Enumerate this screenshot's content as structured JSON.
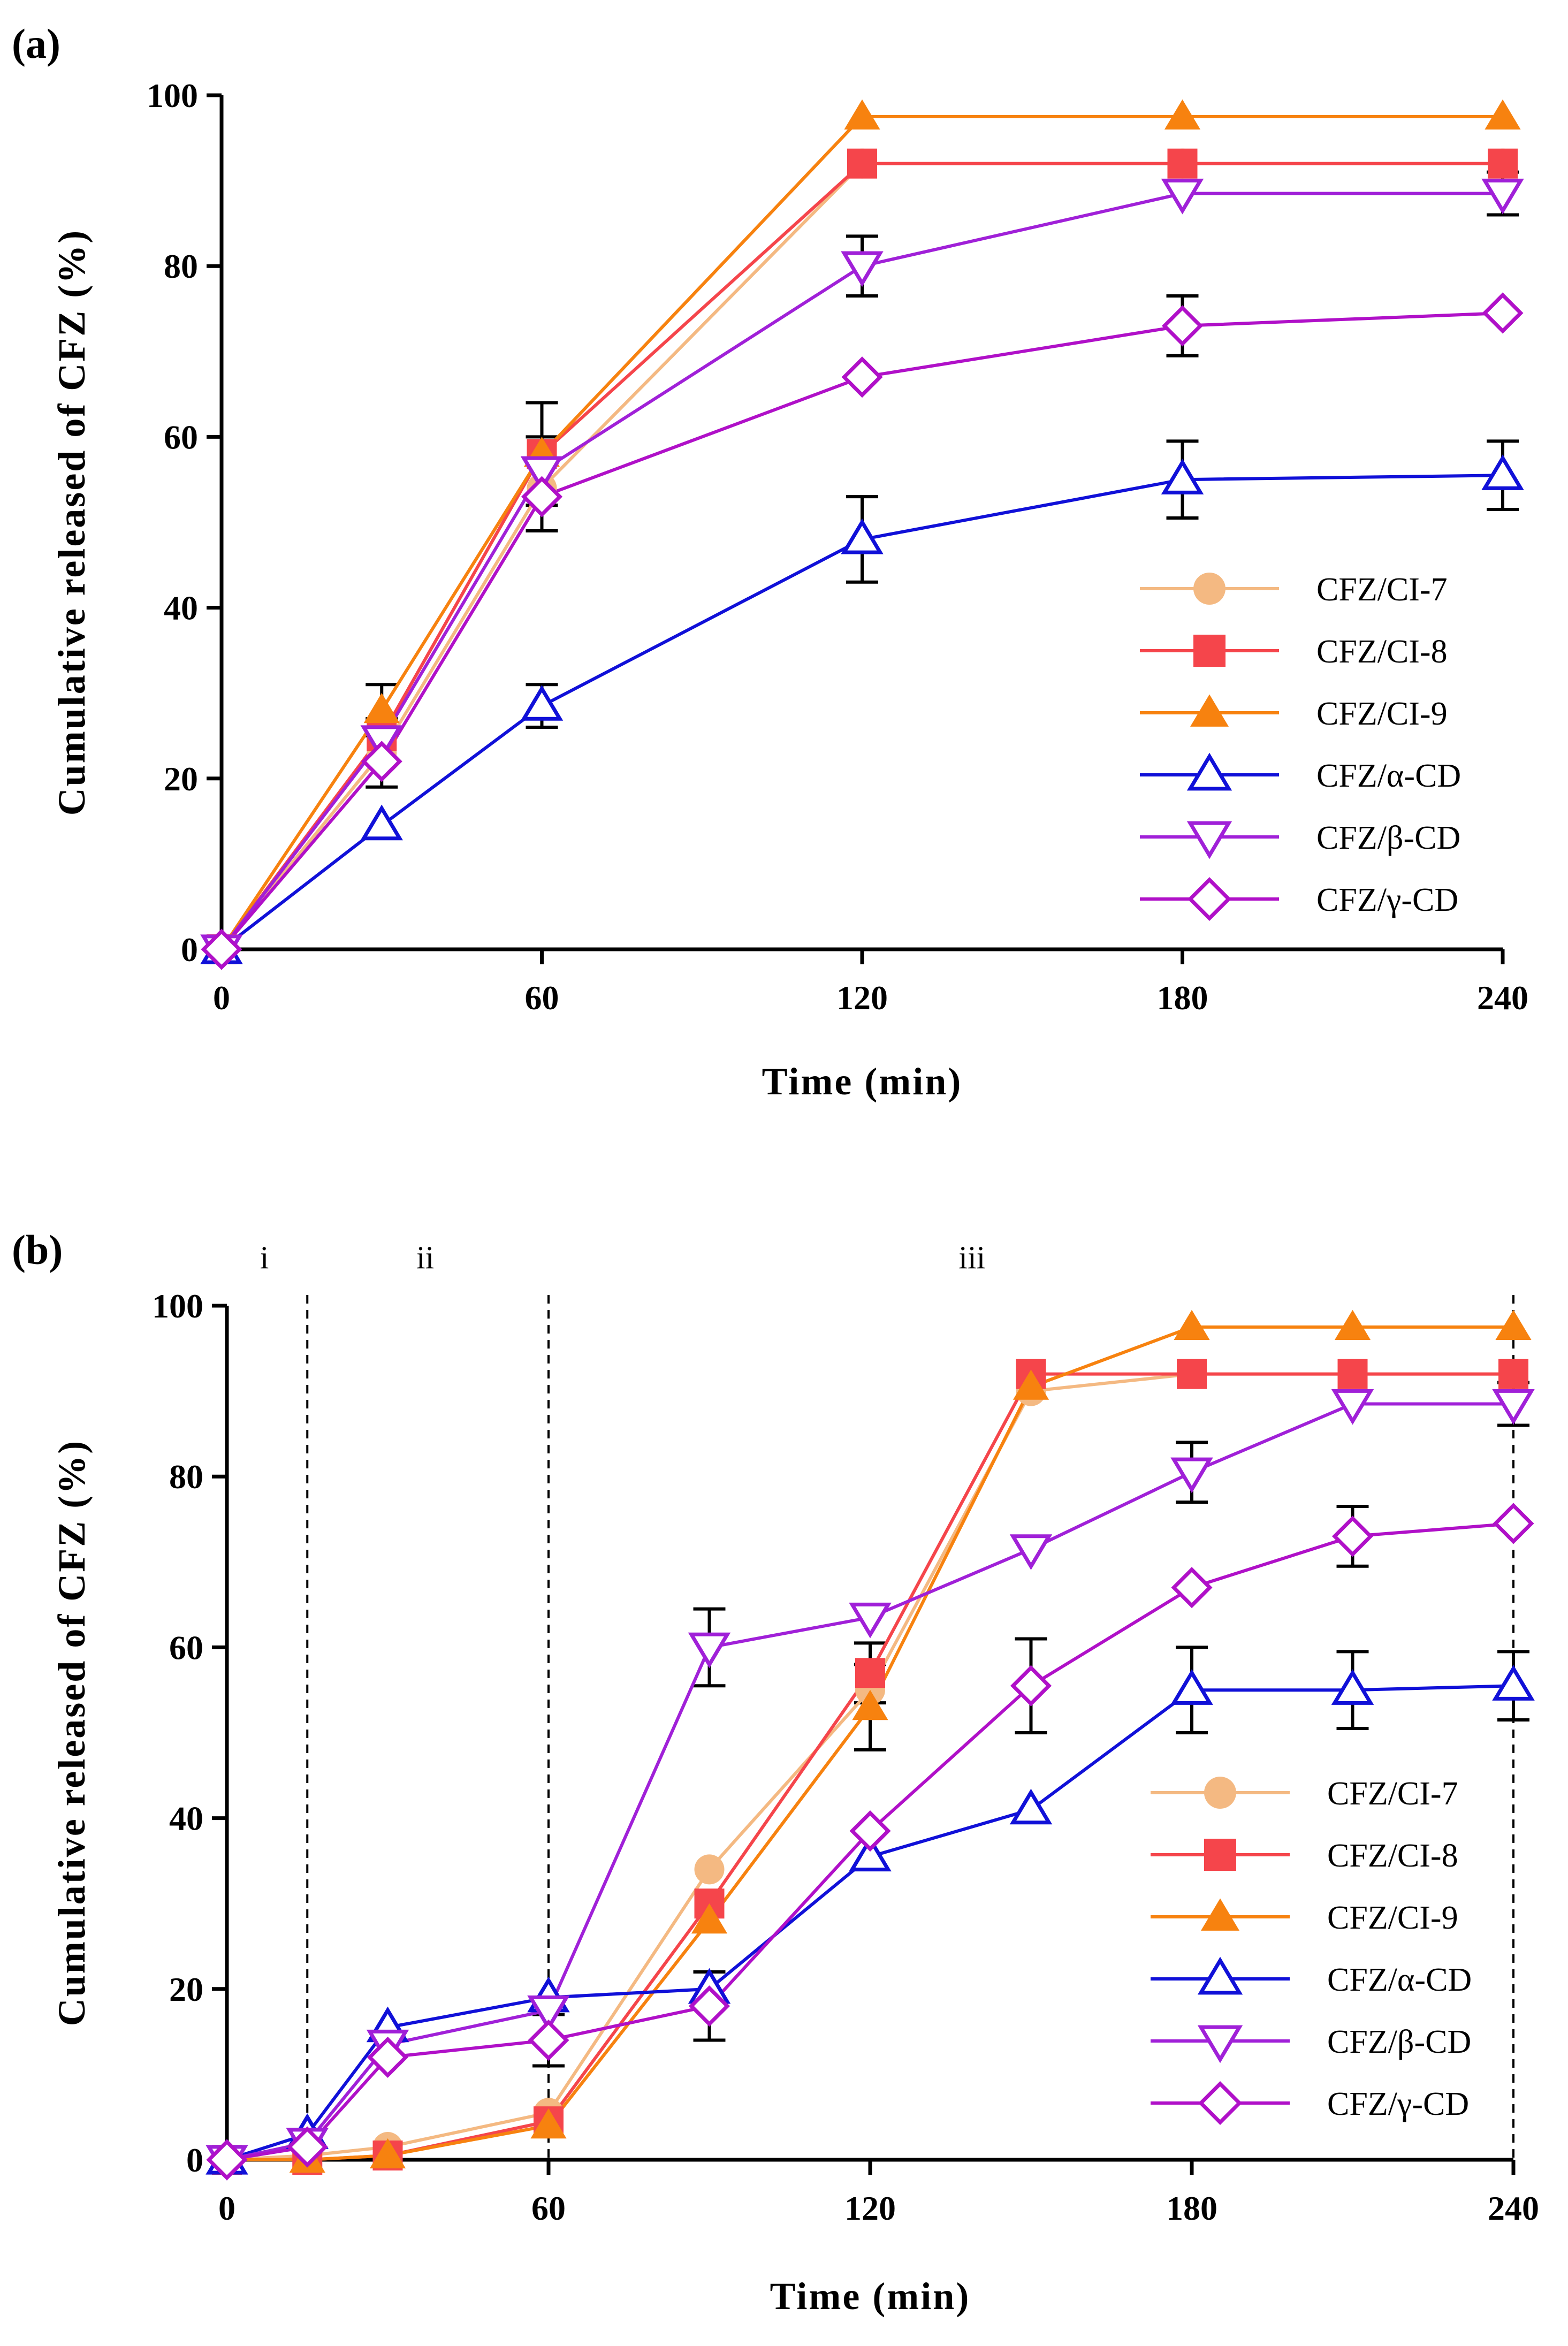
{
  "chart_data": [
    {
      "panel": "(a)",
      "type": "line",
      "xlabel": "Time (min)",
      "ylabel": "Cumulative released of CFZ (%)",
      "xlim": [
        0,
        240
      ],
      "ylim": [
        0,
        100
      ],
      "xticks": [
        "0",
        "60",
        "120",
        "180",
        "240"
      ],
      "yticks": [
        "0",
        "20",
        "40",
        "60",
        "80",
        "100"
      ],
      "legend_position": "right",
      "region_labels": [],
      "series": [
        {
          "name": "CFZ/CI-7",
          "color": "#F4B982",
          "marker": "circle",
          "x": [
            0,
            30,
            60,
            120,
            180,
            240
          ],
          "y": [
            0,
            23,
            54,
            92,
            92,
            92
          ],
          "err": [
            0,
            0,
            0,
            0,
            0,
            0
          ]
        },
        {
          "name": "CFZ/CI-8",
          "color": "#F5454B",
          "marker": "square",
          "x": [
            0,
            30,
            60,
            120,
            180,
            240
          ],
          "y": [
            0,
            25,
            58,
            92,
            92,
            92
          ],
          "err": [
            0,
            0,
            0,
            0,
            0,
            0
          ]
        },
        {
          "name": "CFZ/CI-9",
          "color": "#F7820F",
          "marker": "triangle-up",
          "x": [
            0,
            30,
            60,
            120,
            180,
            240
          ],
          "y": [
            0,
            28,
            58,
            97.5,
            97.5,
            97.5
          ],
          "err": [
            0,
            3,
            6,
            0,
            0,
            0
          ]
        },
        {
          "name": "CFZ/α-CD",
          "color": "#1010D8",
          "marker": "triangle-up-open",
          "x": [
            0,
            30,
            60,
            120,
            180,
            240
          ],
          "y": [
            0,
            14.5,
            28.5,
            48,
            55,
            55.5
          ],
          "err": [
            0,
            0,
            2.5,
            5,
            4.5,
            4
          ]
        },
        {
          "name": "CFZ/β-CD",
          "color": "#A020D8",
          "marker": "triangle-down-open",
          "x": [
            0,
            30,
            60,
            120,
            180,
            240
          ],
          "y": [
            0,
            24.5,
            56,
            80,
            88.5,
            88.5
          ],
          "err": [
            0,
            2.5,
            4,
            3.5,
            0,
            2.5
          ]
        },
        {
          "name": "CFZ/γ-CD",
          "color": "#B010C8",
          "marker": "diamond-open",
          "x": [
            0,
            30,
            60,
            120,
            180,
            240
          ],
          "y": [
            0,
            22,
            53,
            67,
            73,
            74.5
          ],
          "err": [
            0,
            3,
            4,
            0,
            3.5,
            0
          ]
        }
      ]
    },
    {
      "panel": "(b)",
      "type": "line",
      "xlabel": "Time (min)",
      "ylabel": "Cumulative released of CFZ (%)",
      "xlim": [
        0,
        240
      ],
      "ylim": [
        0,
        100
      ],
      "xticks": [
        "0",
        "60",
        "120",
        "180",
        "240"
      ],
      "yticks": [
        "0",
        "20",
        "40",
        "60",
        "80",
        "100"
      ],
      "legend_position": "right",
      "region_dividers_x": [
        15,
        60,
        240
      ],
      "region_labels": [
        {
          "text": "i",
          "x": 7
        },
        {
          "text": "ii",
          "x": 37
        },
        {
          "text": "iii",
          "x": 139
        }
      ],
      "series": [
        {
          "name": "CFZ/CI-7",
          "color": "#F4B982",
          "marker": "circle",
          "x": [
            0,
            15,
            30,
            60,
            90,
            120,
            150,
            180,
            210,
            240
          ],
          "y": [
            0,
            0.5,
            1.5,
            5.5,
            34,
            55,
            90,
            92,
            92,
            92
          ],
          "err": [
            0,
            0,
            0,
            0,
            0,
            0,
            0,
            0,
            0,
            0
          ]
        },
        {
          "name": "CFZ/CI-8",
          "color": "#F5454B",
          "marker": "square",
          "x": [
            0,
            15,
            30,
            60,
            90,
            120,
            150,
            180,
            210,
            240
          ],
          "y": [
            0,
            0,
            0.5,
            4.5,
            30,
            57,
            92,
            92,
            92,
            92
          ],
          "err": [
            0,
            0,
            0,
            0,
            0,
            3.5,
            0,
            0,
            0,
            0
          ]
        },
        {
          "name": "CFZ/CI-9",
          "color": "#F7820F",
          "marker": "triangle-up",
          "x": [
            0,
            15,
            30,
            60,
            90,
            120,
            150,
            180,
            210,
            240
          ],
          "y": [
            0,
            0,
            0.5,
            4,
            28,
            53,
            90.5,
            97.5,
            97.5,
            97.5
          ],
          "err": [
            0,
            0,
            0,
            0,
            0,
            5,
            0,
            0,
            0,
            0
          ]
        },
        {
          "name": "CFZ/α-CD",
          "color": "#1010D8",
          "marker": "triangle-up-open",
          "x": [
            0,
            15,
            30,
            60,
            90,
            120,
            150,
            180,
            210,
            240
          ],
          "y": [
            0,
            3,
            15.5,
            19,
            20,
            35.5,
            41,
            55,
            55,
            55.5
          ],
          "err": [
            0,
            0,
            0,
            0,
            2,
            0,
            0,
            5,
            4.5,
            4
          ]
        },
        {
          "name": "CFZ/β-CD",
          "color": "#A020D8",
          "marker": "triangle-down-open",
          "x": [
            0,
            15,
            30,
            60,
            90,
            120,
            150,
            180,
            210,
            240
          ],
          "y": [
            0,
            2,
            13.5,
            17.5,
            60,
            63.5,
            71.5,
            80.5,
            88.5,
            88.5
          ],
          "err": [
            0,
            0,
            0,
            0,
            4.5,
            0,
            0,
            3.5,
            0,
            2.5
          ]
        },
        {
          "name": "CFZ/γ-CD",
          "color": "#B010C8",
          "marker": "diamond-open",
          "x": [
            0,
            15,
            30,
            60,
            90,
            120,
            150,
            180,
            210,
            240
          ],
          "y": [
            0,
            1.5,
            12,
            14,
            18,
            38.5,
            55.5,
            67,
            73,
            74.5
          ],
          "err": [
            0,
            0,
            0,
            3,
            4,
            0,
            5.5,
            0,
            3.5,
            0
          ]
        }
      ]
    }
  ]
}
